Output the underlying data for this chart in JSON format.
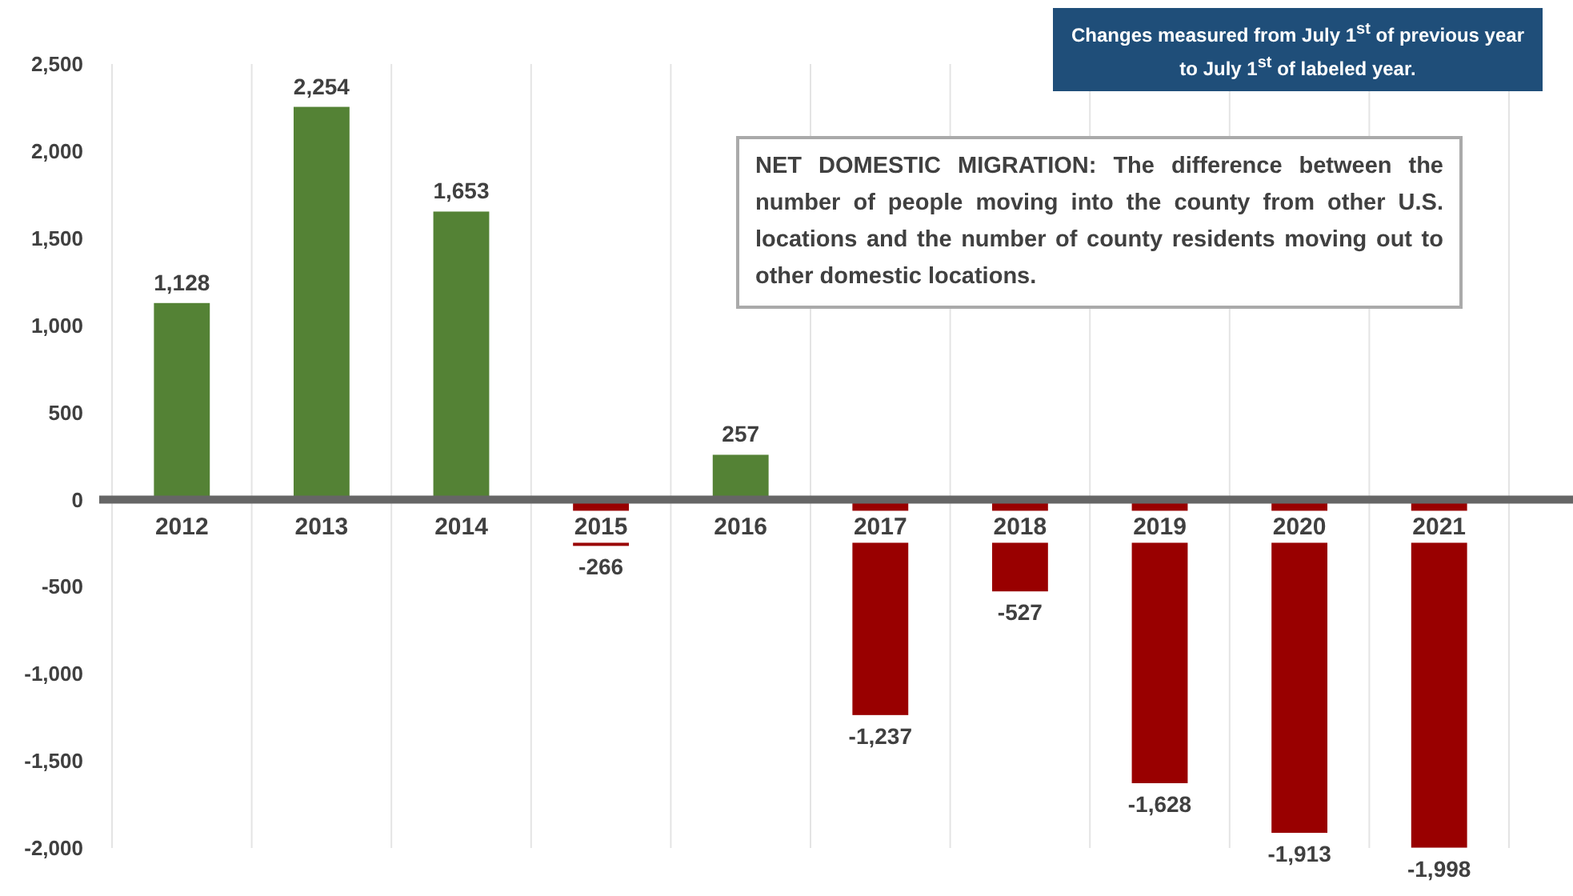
{
  "chart_data": {
    "type": "bar",
    "categories": [
      "2012",
      "2013",
      "2014",
      "2015",
      "2016",
      "2017",
      "2018",
      "2019",
      "2020",
      "2021"
    ],
    "values": [
      1128,
      2254,
      1653,
      -266,
      257,
      -1237,
      -527,
      -1628,
      -1913,
      -1998
    ],
    "colors": [
      "#548235",
      "#548235",
      "#548235",
      "#990000",
      "#548235",
      "#990000",
      "#990000",
      "#990000",
      "#990000",
      "#990000"
    ],
    "value_labels": [
      "1,128",
      "2,254",
      "1,653",
      "-266",
      "257",
      "-1,237",
      "-527",
      "-1,628",
      "-1,913",
      "-1,998"
    ],
    "ylim": [
      -2000,
      2500
    ],
    "yticks": [
      {
        "value": -2000,
        "label": "-2,000"
      },
      {
        "value": -1500,
        "label": "-1,500"
      },
      {
        "value": -1000,
        "label": "-1,000"
      },
      {
        "value": -500,
        "label": "-500"
      },
      0,
      500,
      {
        "value": 1000,
        "label": "1,000"
      },
      {
        "value": 1500,
        "label": "1,500"
      },
      {
        "value": 2000,
        "label": "2,000"
      },
      {
        "value": 2500,
        "label": "2,500"
      }
    ],
    "grid": "x",
    "annotations": [
      "Changes measured from July 1$^{st}$ of previous year to July 1$^{st}$ of labeled year.",
      "NET DOMESTIC MIGRATION: The difference between the number of people moving into the county from other U.S. locations and the number of county residents moving out to other domestic locations."
    ]
  }
}
